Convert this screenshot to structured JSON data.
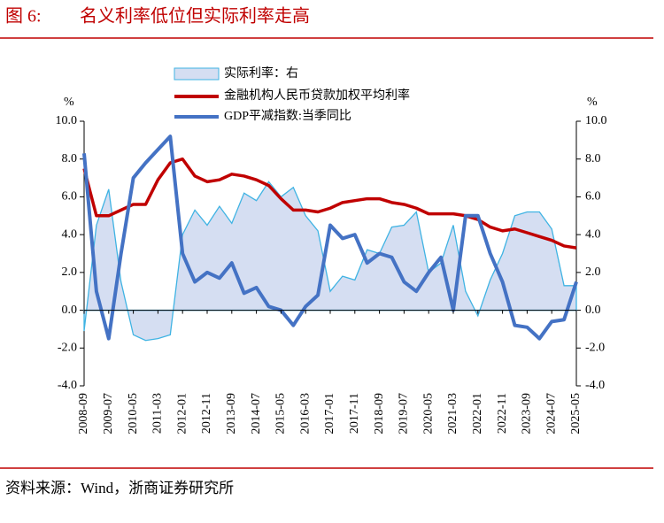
{
  "chart_data": {
    "type": "line",
    "figure_label": "图 6:",
    "title": "名义利率低位但实际利率走高",
    "source": "资料来源：Wind，浙商证券研究所",
    "ylabel": "%",
    "y2label": "%",
    "categories": [
      "2008-09",
      null,
      "2009-07",
      null,
      "2010-05",
      null,
      "2011-03",
      null,
      "2012-01",
      null,
      "2012-11",
      null,
      "2013-09",
      null,
      "2014-07",
      null,
      "2015-05",
      null,
      "2016-03",
      null,
      "2017-01",
      null,
      "2017-11",
      null,
      "2018-09",
      null,
      "2019-07",
      null,
      "2020-05",
      null,
      "2021-03",
      null,
      "2022-01",
      null,
      "2022-11",
      null,
      "2023-09",
      null,
      "2024-07",
      null,
      "2025-05"
    ],
    "series": [
      {
        "name": "实际利率：右",
        "type": "area",
        "axis": "y2",
        "color": "#3fb3e3",
        "fill": "#d5def2",
        "values": [
          -1.1,
          4.5,
          6.4,
          1.5,
          -1.3,
          -1.6,
          -1.5,
          -1.3,
          4.0,
          5.3,
          4.5,
          5.5,
          4.6,
          6.2,
          5.8,
          6.8,
          6.0,
          6.5,
          5.0,
          4.2,
          1.0,
          1.8,
          1.6,
          3.2,
          3.0,
          4.4,
          4.5,
          5.2,
          2.0,
          2.5,
          4.5,
          1.0,
          -0.3,
          1.6,
          3.0,
          5.0,
          5.2,
          5.2,
          4.3,
          1.3,
          1.3
        ]
      },
      {
        "name": "金融机构人民币贷款加权平均利率",
        "type": "line",
        "color": "#c00000",
        "values": [
          7.5,
          5.0,
          5.0,
          5.3,
          5.6,
          5.6,
          6.9,
          7.8,
          8.0,
          7.1,
          6.8,
          6.9,
          7.2,
          7.1,
          6.9,
          6.6,
          5.9,
          5.3,
          5.3,
          5.2,
          5.4,
          5.7,
          5.8,
          5.9,
          5.9,
          5.7,
          5.6,
          5.4,
          5.1,
          5.1,
          5.1,
          5.0,
          4.8,
          4.4,
          4.2,
          4.3,
          4.1,
          3.9,
          3.7,
          3.4,
          3.3
        ]
      },
      {
        "name": "GDP平减指数:当季同比",
        "type": "line",
        "color": "#4472c4",
        "values": [
          8.3,
          1.0,
          -1.5,
          3.0,
          7.0,
          7.8,
          8.5,
          9.2,
          3.0,
          1.5,
          2.0,
          1.7,
          2.5,
          0.9,
          1.2,
          0.2,
          0.0,
          -0.8,
          0.2,
          0.8,
          4.5,
          3.8,
          4.0,
          2.5,
          3.0,
          2.8,
          1.5,
          1.0,
          2.0,
          2.8,
          0.0,
          5.0,
          5.0,
          3.0,
          1.5,
          -0.8,
          -0.9,
          -1.5,
          -0.6,
          -0.5,
          1.5
        ]
      }
    ],
    "ylim": [
      -4,
      10
    ],
    "yticks": [
      {
        "value": 10,
        "label": "10.0"
      },
      {
        "value": 8,
        "label": "8.0"
      },
      {
        "value": 6,
        "label": "6.0"
      },
      {
        "value": 4,
        "label": "4.0"
      },
      {
        "value": 2,
        "label": "2.0"
      },
      {
        "value": 0,
        "label": "0.0"
      },
      {
        "value": -2,
        "label": "-2.0"
      },
      {
        "value": -4,
        "label": "-4.0"
      }
    ],
    "y2lim": [
      -4,
      10
    ],
    "y2ticks": [
      {
        "value": 10,
        "label": "10.0"
      },
      {
        "value": 8,
        "label": "8.0"
      },
      {
        "value": 6,
        "label": "6.0"
      },
      {
        "value": 4,
        "label": "4.0"
      },
      {
        "value": 2,
        "label": "2.0"
      },
      {
        "value": 0,
        "label": "0.0"
      },
      {
        "value": -2,
        "label": "-2.0"
      },
      {
        "value": -4,
        "label": "-4.0"
      }
    ],
    "legend": "top"
  }
}
